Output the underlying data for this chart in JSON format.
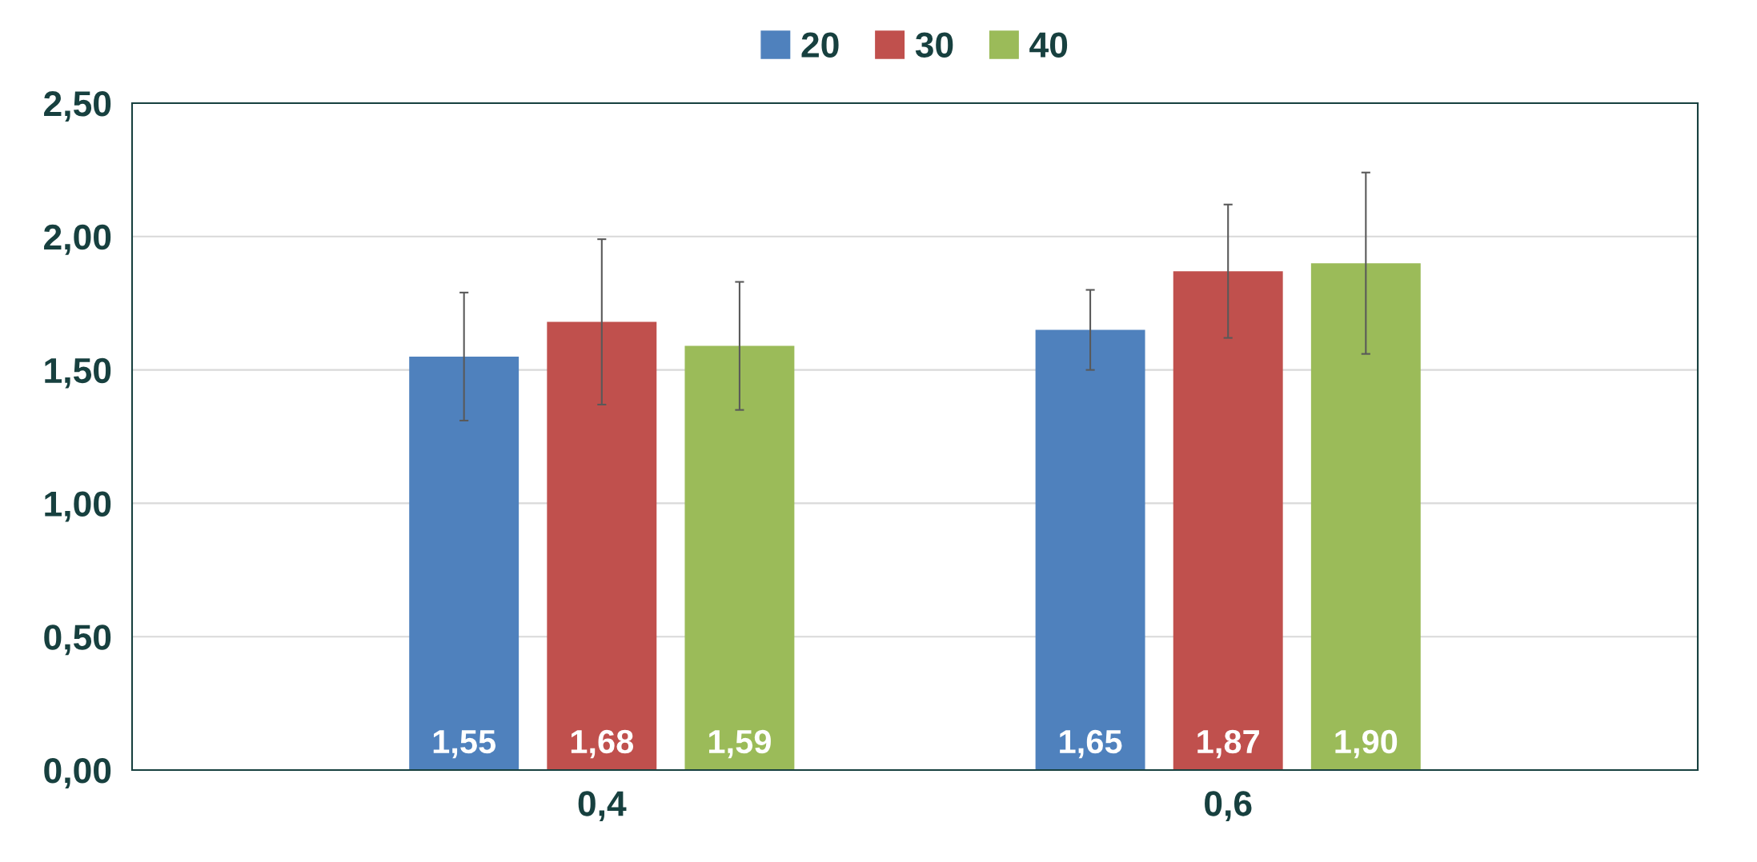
{
  "chart_data": {
    "type": "bar",
    "categories": [
      "0,4",
      "0,6"
    ],
    "series": [
      {
        "name": "20",
        "color": "#4f81bd",
        "values": [
          1.55,
          1.65
        ],
        "errors": [
          0.24,
          0.15
        ],
        "value_labels": [
          "1,55",
          "1,65"
        ]
      },
      {
        "name": "30",
        "color": "#c0504d",
        "values": [
          1.68,
          1.87
        ],
        "errors": [
          0.31,
          0.25
        ],
        "value_labels": [
          "1,68",
          "1,87"
        ]
      },
      {
        "name": "40",
        "color": "#9bbb59",
        "values": [
          1.59,
          1.9
        ],
        "errors": [
          0.24,
          0.34
        ],
        "value_labels": [
          "1,59",
          "1,90"
        ]
      }
    ],
    "ylim": [
      0,
      2.5
    ],
    "yticks": [
      {
        "value": 0,
        "label": "0,00"
      },
      {
        "value": 0.5,
        "label": "0,50"
      },
      {
        "value": 1.0,
        "label": "1,00"
      },
      {
        "value": 1.5,
        "label": "1,50"
      },
      {
        "value": 2.0,
        "label": "2,00"
      },
      {
        "value": 2.5,
        "label": "2,50"
      }
    ],
    "grid": "y",
    "legend": "top"
  }
}
